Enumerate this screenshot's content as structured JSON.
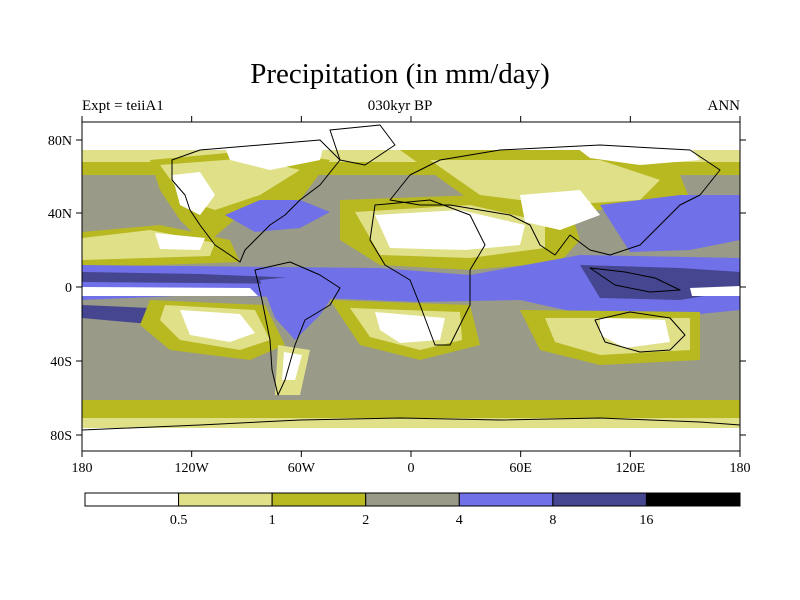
{
  "title": "Precipitation (in mm/day)",
  "subtitle_left": "Expt = teiiA1",
  "subtitle_center": "030kyr BP",
  "subtitle_right": "ANN",
  "lat_ticks": [
    "80N",
    "40N",
    "0",
    "40S",
    "80S"
  ],
  "lon_ticks": [
    "180",
    "120W",
    "60W",
    "0",
    "60E",
    "120E",
    "180"
  ],
  "legend": {
    "colors": [
      "#ffffff",
      "#e0e088",
      "#b8b820",
      "#9a9a88",
      "#7070e8",
      "#454590",
      "#000000"
    ],
    "labels": [
      "0.5",
      "1",
      "2",
      "4",
      "8",
      "16"
    ]
  },
  "palette": {
    "lt0_5": "#ffffff",
    "b0_5_1": "#e0e088",
    "b1_2": "#b8b820",
    "b2_4": "#9a9a88",
    "b4_8": "#7070e8",
    "b8_16": "#454590"
  }
}
